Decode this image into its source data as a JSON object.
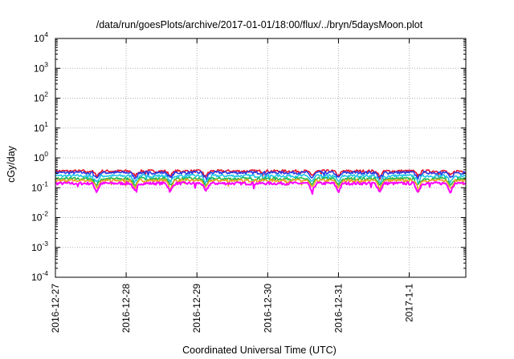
{
  "chart_data": {
    "type": "line",
    "title": "/data/run/goesPlots/archive/2017-01-01/18:00/flux/../bryn/5daysMoon.plot",
    "xlabel": "Coordinated Universal Time (UTC)",
    "ylabel": "cGy/day",
    "x_range": [
      "2016-12-27 00:00",
      "2017-01-01 18:00"
    ],
    "x_ticks": [
      "2016-12-27",
      "2016-12-28",
      "2016-12-29",
      "2016-12-30",
      "2016-12-31",
      "2017-1-1"
    ],
    "y_scale": "log",
    "ylim": [
      0.0001,
      10000
    ],
    "y_ticks": [
      {
        "base": "10",
        "exp": "-4"
      },
      {
        "base": "10",
        "exp": "-3"
      },
      {
        "base": "10",
        "exp": "-2"
      },
      {
        "base": "10",
        "exp": "-1"
      },
      {
        "base": "10",
        "exp": "0"
      },
      {
        "base": "10",
        "exp": "1"
      },
      {
        "base": "10",
        "exp": "2"
      },
      {
        "base": "10",
        "exp": "3"
      },
      {
        "base": "10",
        "exp": "4"
      }
    ],
    "grid": true,
    "series": [
      {
        "color": "#e8112d",
        "base": 0.36,
        "values_description_free": true
      },
      {
        "color": "#2a3ce6",
        "base": 0.32
      },
      {
        "color": "#1fc3e8",
        "base": 0.25
      },
      {
        "color": "#1db954",
        "base": 0.2
      },
      {
        "color": "#e6a31a",
        "base": 0.175
      },
      {
        "color": "#ff00ff",
        "base": 0.14
      }
    ],
    "dips": [
      "2016-12-27 14:00",
      "2016-12-28 03:00",
      "2016-12-28 15:00",
      "2016-12-29 03:00",
      "2016-12-30 15:00",
      "2016-12-31 00:00",
      "2016-12-31 14:00",
      "2017-01-01 03:00",
      "2017-01-01 14:00"
    ]
  }
}
